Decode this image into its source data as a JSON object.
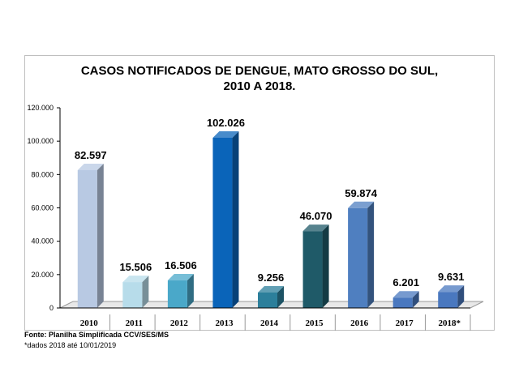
{
  "chart_data": {
    "type": "bar",
    "title_line1": "CASOS NOTIFICADOS  DE DENGUE, MATO GROSSO DO SUL,",
    "title_line2": "2010 A 2018.",
    "categories": [
      "2010",
      "2011",
      "2012",
      "2013",
      "2014",
      "2015",
      "2016",
      "2017",
      "2018*"
    ],
    "values": [
      82597,
      15506,
      16506,
      102026,
      9256,
      46070,
      59874,
      6201,
      9631
    ],
    "data_labels": [
      "82.597",
      "15.506",
      "16.506",
      "102.026",
      "9.256",
      "46.070",
      "59.874",
      "6.201",
      "9.631"
    ],
    "bar_colors": [
      "#b8c9e3",
      "#b7dcea",
      "#4aa8c9",
      "#0a64b9",
      "#2c7f9b",
      "#1f5a68",
      "#4f7fc0",
      "#4a78bf",
      "#4a78bf"
    ],
    "ylim": [
      0,
      120000
    ],
    "yticks": [
      0,
      20000,
      40000,
      60000,
      80000,
      100000,
      120000
    ],
    "ytick_labels": [
      "0",
      "20.000",
      "40.000",
      "60.000",
      "80.000",
      "100.000",
      "120.000"
    ],
    "grid": false,
    "style": "3d-columns"
  },
  "footnotes": {
    "source": "Fonte: Planilha Simplificada CCV/SES/MS",
    "note": "*dados 2018 até 10/01/2019"
  }
}
